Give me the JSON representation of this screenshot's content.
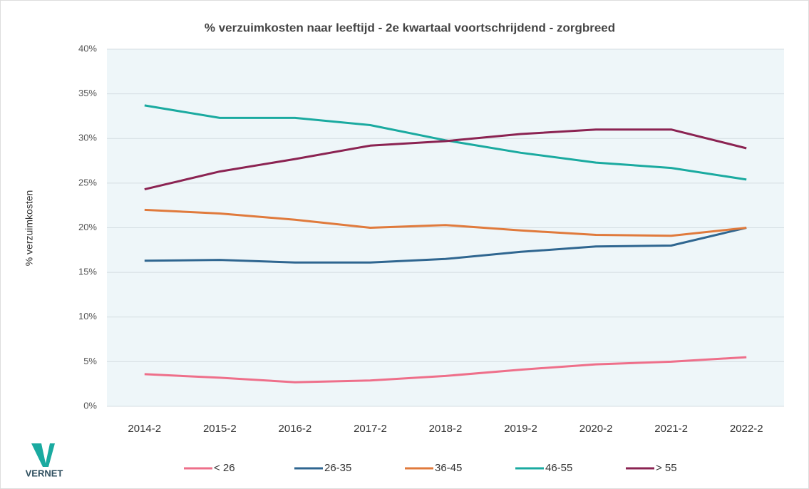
{
  "logo": "VERNET",
  "chart_data": {
    "type": "line",
    "title": "% verzuimkosten naar leeftijd - 2e kwartaal voortschrijdend - zorgbreed",
    "y_label": "% verzuimkosten",
    "categories": [
      "2014-2",
      "2015-2",
      "2016-2",
      "2017-2",
      "2018-2",
      "2019-2",
      "2020-2",
      "2021-2",
      "2022-2"
    ],
    "ylim": [
      0,
      40
    ],
    "yticks": [
      {
        "value": 0,
        "label": "0%"
      },
      {
        "value": 5,
        "label": "5%"
      },
      {
        "value": 10,
        "label": "10%"
      },
      {
        "value": 15,
        "label": "15%"
      },
      {
        "value": 20,
        "label": "20%"
      },
      {
        "value": 25,
        "label": "25%"
      },
      {
        "value": 30,
        "label": "30%"
      },
      {
        "value": 35,
        "label": "35%"
      },
      {
        "value": 40,
        "label": "40%"
      }
    ],
    "grid": true,
    "legend": "bottom",
    "series": [
      {
        "name": "< 26",
        "color": "#ee6f8a",
        "values": [
          3.6,
          3.2,
          2.7,
          2.9,
          3.4,
          4.1,
          4.7,
          5.0,
          5.5
        ]
      },
      {
        "name": "26-35",
        "color": "#2f6690",
        "values": [
          16.3,
          16.4,
          16.1,
          16.1,
          16.5,
          17.3,
          17.9,
          18.0,
          20.0
        ]
      },
      {
        "name": "36-45",
        "color": "#e07a3c",
        "values": [
          22.0,
          21.6,
          20.9,
          20.0,
          20.3,
          19.7,
          19.2,
          19.1,
          20.0
        ]
      },
      {
        "name": "46-55",
        "color": "#1aaaa0",
        "values": [
          33.7,
          32.3,
          32.3,
          31.5,
          29.8,
          28.4,
          27.3,
          26.7,
          25.4
        ]
      },
      {
        "name": "> 55",
        "color": "#8b2352",
        "values": [
          24.3,
          26.3,
          27.7,
          29.2,
          29.7,
          30.5,
          31.0,
          31.0,
          28.9
        ]
      }
    ]
  }
}
